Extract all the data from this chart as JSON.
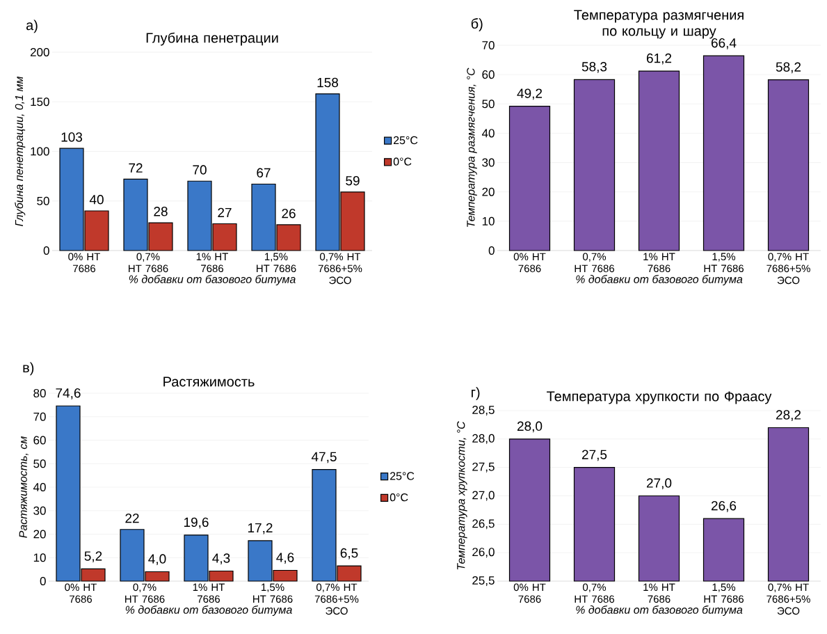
{
  "chart_data": [
    {
      "type": "bar",
      "title": "Глубина пенетрации",
      "xlabel": "% добавки от базового битума",
      "ylabel": "Глубина пенетрации, 0,1 мм",
      "annotations": [
        "а)"
      ],
      "categories": [
        "0% НТ 7686",
        "0,7% НТ 7686",
        "1% НТ 7686",
        "1,5% НТ 7686",
        "0,7% НТ 7686+5% ЭСО"
      ],
      "series": [
        {
          "name": "25°C",
          "color": "#3a78c8",
          "values": [
            103,
            72,
            70,
            67,
            158
          ],
          "value_labels": [
            "103",
            "72",
            "70",
            "67",
            "158"
          ]
        },
        {
          "name": "0°C",
          "color": "#c0392b",
          "values": [
            40,
            28,
            27,
            26,
            59
          ],
          "value_labels": [
            "40",
            "28",
            "27",
            "26",
            "59"
          ]
        }
      ],
      "ylim": [
        0,
        200
      ],
      "yticks": [
        0,
        50,
        100,
        150,
        200
      ],
      "grid": "y",
      "legend": "right"
    },
    {
      "type": "bar",
      "title": "Температура размягчения по кольцу и шару",
      "xlabel": "% добавки от базового битума",
      "ylabel": "Температура размягчения, °С",
      "annotations": [
        "б)"
      ],
      "categories": [
        "0% НТ 7686",
        "0,7% НТ 7686",
        "1% НТ 7686",
        "1,5% НТ 7686",
        "0,7% НТ 7686+5% ЭСО"
      ],
      "series": [
        {
          "color": "#7b55a8",
          "values": [
            49.2,
            58.3,
            61.2,
            66.4,
            58.2
          ],
          "value_labels": [
            "49,2",
            "58,3",
            "61,2",
            "66,4",
            "58,2"
          ]
        }
      ],
      "ylim": [
        0,
        70
      ],
      "yticks": [
        0,
        10,
        20,
        30,
        40,
        50,
        60,
        70
      ],
      "grid": "y"
    },
    {
      "type": "bar",
      "title": "Растяжимость",
      "xlabel": "% добавки от базового битума",
      "ylabel": "Растяжимость, см",
      "annotations": [
        "в)"
      ],
      "categories": [
        "0% НТ 7686",
        "0,7% НТ 7686",
        "1% НТ 7686",
        "1,5% НТ 7686",
        "0,7% НТ 7686+5% ЭСО"
      ],
      "series": [
        {
          "name": "25°C",
          "color": "#3a78c8",
          "values": [
            74.6,
            22,
            19.6,
            17.2,
            47.5
          ],
          "value_labels": [
            "74,6",
            "22",
            "19,6",
            "17,2",
            "47,5"
          ]
        },
        {
          "name": "0°C",
          "color": "#c0392b",
          "values": [
            5.2,
            4.0,
            4.3,
            4.6,
            6.5
          ],
          "value_labels": [
            "5,2",
            "4,0",
            "4,3",
            "4,6",
            "6,5"
          ]
        }
      ],
      "ylim": [
        0,
        80
      ],
      "yticks": [
        0,
        10,
        20,
        30,
        40,
        50,
        60,
        70,
        80
      ],
      "grid": "y",
      "legend": "right"
    },
    {
      "type": "bar",
      "title": "Температура хрупкости по Фраасу",
      "xlabel": "% добавки от базового битума",
      "ylabel": "Температура хрупкости, °С",
      "annotations": [
        "г)"
      ],
      "categories": [
        "0% НТ 7686",
        "0,7% НТ 7686",
        "1% НТ 7686",
        "1,5% НТ 7686",
        "0,7% НТ 7686+5% ЭСО"
      ],
      "series": [
        {
          "color": "#7b55a8",
          "values": [
            28.0,
            27.5,
            27.0,
            26.6,
            28.2
          ],
          "value_labels": [
            "28,0",
            "27,5",
            "27,0",
            "26,6",
            "28,2"
          ]
        }
      ],
      "ylim": [
        25.5,
        28.5
      ],
      "yticks": [
        {
          "value": 25.5,
          "label": "25,5"
        },
        {
          "value": 26.0,
          "label": "26,0"
        },
        {
          "value": 26.5,
          "label": "26,5"
        },
        {
          "value": 27.0,
          "label": "27,0"
        },
        {
          "value": 27.5,
          "label": "27,5"
        },
        {
          "value": 28.0,
          "label": "28,0"
        },
        {
          "value": 28.5,
          "label": "28,5"
        }
      ],
      "grid": "y"
    }
  ]
}
